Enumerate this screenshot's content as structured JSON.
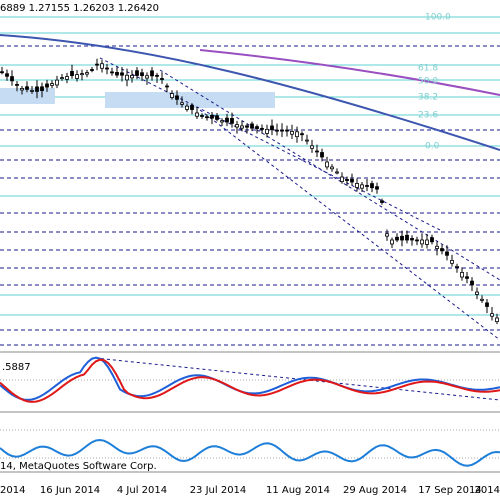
{
  "header": {
    "ohlc": "6889 1.27155 1.26203 1.26420"
  },
  "fibonacci_levels": [
    "100.0",
    "61.8",
    "50.0",
    "38.2",
    "23.6",
    "0.0"
  ],
  "indicator": {
    "value": ".5887"
  },
  "footer": {
    "copyright": "14, MetaQuotes Software Corp."
  },
  "time_axis": [
    "2014",
    "16 Jun 2014",
    "4 Jul 2014",
    "23 Jul 2014",
    "11 Aug 2014",
    "29 Aug 2014",
    "17 Sep 2014",
    "2014"
  ]
}
